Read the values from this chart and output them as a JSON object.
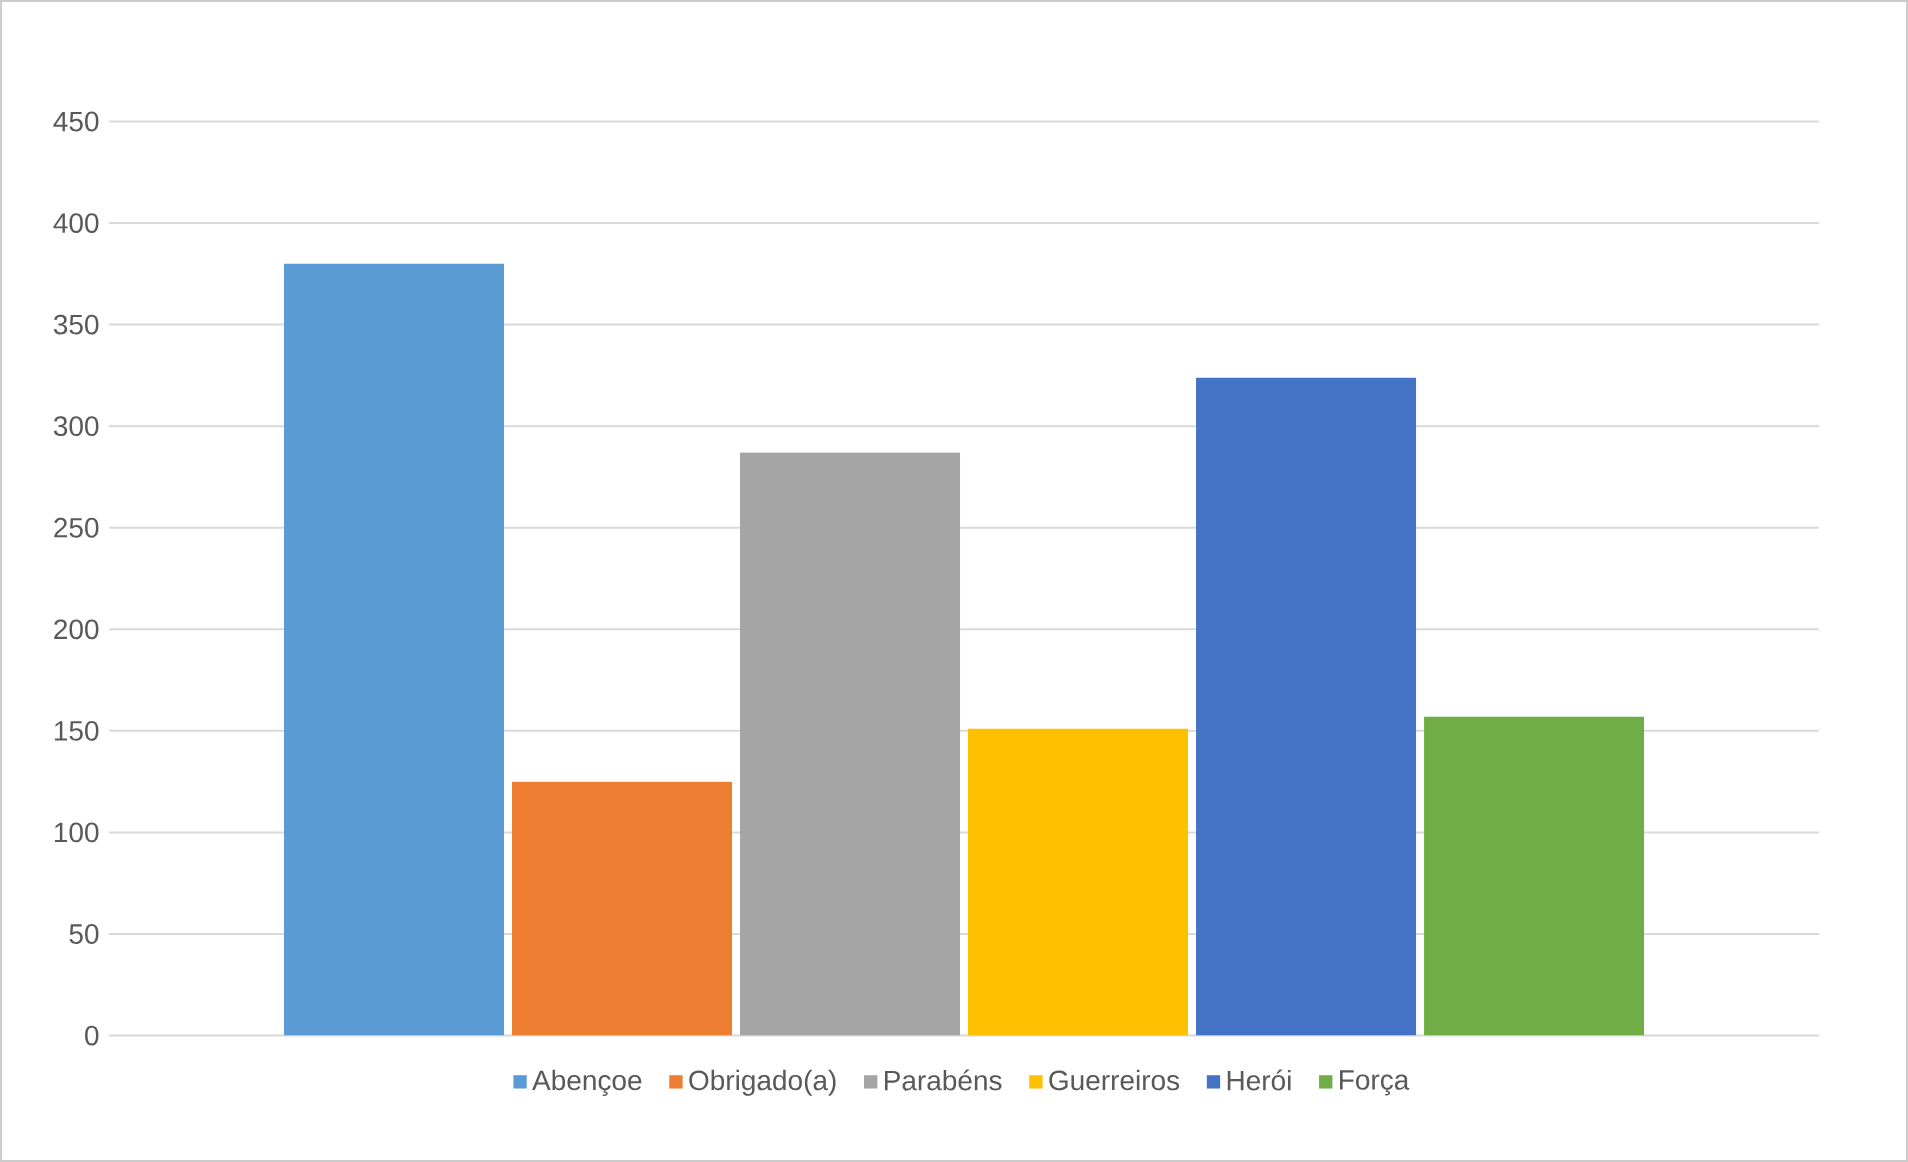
{
  "chart_data": {
    "type": "bar",
    "categories": [
      null
    ],
    "series": [
      {
        "name": "Abençoe",
        "color": "#5b9bd5",
        "values": [
          380
        ]
      },
      {
        "name": "Obrigado(a)",
        "color": "#ed7d31",
        "values": [
          125
        ]
      },
      {
        "name": "Parabéns",
        "color": "#a5a5a5",
        "values": [
          287
        ]
      },
      {
        "name": "Guerreiros",
        "color": "#ffc000",
        "values": [
          151
        ]
      },
      {
        "name": "Herói",
        "color": "#4472c4",
        "values": [
          324
        ]
      },
      {
        "name": "Força",
        "color": "#70ad47",
        "values": [
          157
        ]
      }
    ],
    "ylim": [
      0,
      450
    ],
    "yticks": [
      0,
      50,
      100,
      150,
      200,
      250,
      300,
      350,
      400,
      450
    ],
    "grid": "y",
    "legend": "bottom",
    "tick_labels": "y"
  }
}
